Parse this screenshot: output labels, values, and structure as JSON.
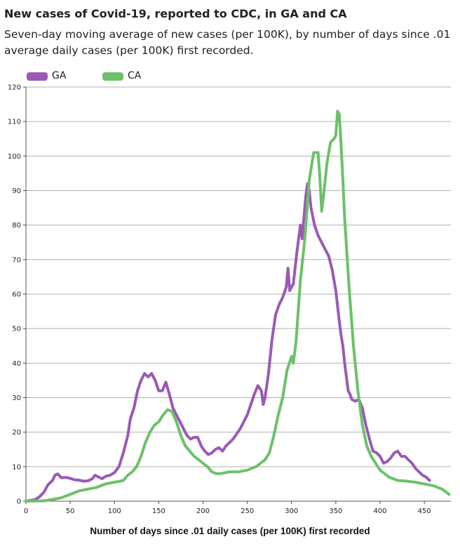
{
  "chart_data": {
    "type": "line",
    "title": "New cases of Covid-19, reported to CDC, in GA and CA",
    "subtitle": "Seven-day moving average of new cases (per 100K), by number of days since .01 average daily cases (per 100K) first recorded.",
    "xlabel": "Number of days since .01 daily cases (per 100K) first recorded",
    "ylabel": "",
    "xlim": [
      0,
      480
    ],
    "ylim": [
      0,
      120
    ],
    "xticks": [
      0,
      50,
      100,
      150,
      200,
      250,
      300,
      350,
      400,
      450
    ],
    "yticks": [
      0,
      10,
      20,
      30,
      40,
      50,
      60,
      70,
      80,
      90,
      100,
      110,
      120
    ],
    "grid": "horizontal",
    "legend_position": "top-left",
    "series": [
      {
        "name": "GA",
        "color": "#9b59b6",
        "points": [
          [
            0,
            0
          ],
          [
            10,
            0.4
          ],
          [
            15,
            1.2
          ],
          [
            20,
            2.5
          ],
          [
            25,
            4.8
          ],
          [
            30,
            6
          ],
          [
            33,
            7.6
          ],
          [
            36,
            7.9
          ],
          [
            40,
            6.8
          ],
          [
            45,
            6.9
          ],
          [
            50,
            6.6
          ],
          [
            55,
            6.2
          ],
          [
            60,
            6.1
          ],
          [
            65,
            5.8
          ],
          [
            70,
            5.9
          ],
          [
            75,
            6.5
          ],
          [
            78,
            7.5
          ],
          [
            82,
            7
          ],
          [
            86,
            6.5
          ],
          [
            90,
            7.2
          ],
          [
            95,
            7.5
          ],
          [
            100,
            8.3
          ],
          [
            105,
            10
          ],
          [
            110,
            14
          ],
          [
            115,
            19
          ],
          [
            118,
            24
          ],
          [
            122,
            27
          ],
          [
            126,
            32
          ],
          [
            130,
            35
          ],
          [
            134,
            37
          ],
          [
            138,
            36
          ],
          [
            142,
            37
          ],
          [
            146,
            35
          ],
          [
            150,
            32
          ],
          [
            154,
            32
          ],
          [
            158,
            34.5
          ],
          [
            162,
            31
          ],
          [
            166,
            27
          ],
          [
            170,
            25
          ],
          [
            174,
            23
          ],
          [
            178,
            21
          ],
          [
            182,
            19
          ],
          [
            186,
            18
          ],
          [
            190,
            18.5
          ],
          [
            194,
            18.5
          ],
          [
            198,
            16
          ],
          [
            202,
            14.5
          ],
          [
            206,
            13.5
          ],
          [
            210,
            14
          ],
          [
            214,
            15
          ],
          [
            218,
            15.5
          ],
          [
            222,
            14.5
          ],
          [
            226,
            16
          ],
          [
            230,
            17
          ],
          [
            234,
            18
          ],
          [
            238,
            19.5
          ],
          [
            242,
            21
          ],
          [
            246,
            23
          ],
          [
            250,
            25
          ],
          [
            254,
            28
          ],
          [
            258,
            31
          ],
          [
            262,
            33.5
          ],
          [
            266,
            32
          ],
          [
            268,
            28
          ],
          [
            270,
            30
          ],
          [
            274,
            37
          ],
          [
            278,
            47
          ],
          [
            282,
            54
          ],
          [
            286,
            57
          ],
          [
            290,
            59
          ],
          [
            294,
            62
          ],
          [
            296,
            67.5
          ],
          [
            298,
            61
          ],
          [
            302,
            63
          ],
          [
            306,
            72
          ],
          [
            310,
            80
          ],
          [
            312,
            76
          ],
          [
            314,
            82
          ],
          [
            316,
            88
          ],
          [
            318,
            92
          ],
          [
            320,
            90
          ],
          [
            322,
            85
          ],
          [
            326,
            80
          ],
          [
            330,
            77
          ],
          [
            334,
            75
          ],
          [
            338,
            73
          ],
          [
            342,
            71
          ],
          [
            346,
            67
          ],
          [
            350,
            61
          ],
          [
            354,
            52
          ],
          [
            356,
            48
          ],
          [
            358,
            45
          ],
          [
            360,
            40
          ],
          [
            362,
            36
          ],
          [
            364,
            32
          ],
          [
            366,
            31
          ],
          [
            368,
            29.5
          ],
          [
            372,
            29
          ],
          [
            376,
            29.5
          ],
          [
            380,
            27
          ],
          [
            384,
            22
          ],
          [
            388,
            18
          ],
          [
            392,
            14.5
          ],
          [
            396,
            14
          ],
          [
            400,
            13
          ],
          [
            404,
            11
          ],
          [
            408,
            11.5
          ],
          [
            412,
            12.5
          ],
          [
            416,
            14
          ],
          [
            420,
            14.5
          ],
          [
            424,
            13
          ],
          [
            428,
            13
          ],
          [
            432,
            12
          ],
          [
            436,
            11
          ],
          [
            440,
            9.5
          ],
          [
            444,
            8.5
          ],
          [
            448,
            7.5
          ],
          [
            452,
            7
          ],
          [
            456,
            6
          ]
        ]
      },
      {
        "name": "CA",
        "color": "#6cc16a",
        "points": [
          [
            0,
            0
          ],
          [
            20,
            0.1
          ],
          [
            30,
            0.5
          ],
          [
            40,
            1
          ],
          [
            50,
            2
          ],
          [
            60,
            3
          ],
          [
            70,
            3.5
          ],
          [
            80,
            4
          ],
          [
            90,
            5
          ],
          [
            100,
            5.5
          ],
          [
            110,
            6
          ],
          [
            115,
            7.5
          ],
          [
            120,
            8.5
          ],
          [
            125,
            10
          ],
          [
            130,
            13
          ],
          [
            135,
            17
          ],
          [
            140,
            20
          ],
          [
            145,
            22
          ],
          [
            150,
            23
          ],
          [
            155,
            25
          ],
          [
            160,
            26.5
          ],
          [
            165,
            26
          ],
          [
            170,
            23
          ],
          [
            175,
            19
          ],
          [
            180,
            16
          ],
          [
            185,
            14.5
          ],
          [
            190,
            13
          ],
          [
            195,
            12
          ],
          [
            200,
            11
          ],
          [
            205,
            10
          ],
          [
            210,
            8.5
          ],
          [
            215,
            8
          ],
          [
            220,
            8
          ],
          [
            230,
            8.5
          ],
          [
            240,
            8.5
          ],
          [
            250,
            9
          ],
          [
            255,
            9.5
          ],
          [
            260,
            10
          ],
          [
            265,
            11
          ],
          [
            270,
            12
          ],
          [
            275,
            14
          ],
          [
            280,
            19
          ],
          [
            285,
            25
          ],
          [
            290,
            30
          ],
          [
            295,
            38
          ],
          [
            300,
            42
          ],
          [
            302,
            40
          ],
          [
            305,
            46
          ],
          [
            310,
            64
          ],
          [
            315,
            76
          ],
          [
            318,
            86
          ],
          [
            320,
            93
          ],
          [
            325,
            101
          ],
          [
            330,
            101
          ],
          [
            332,
            94
          ],
          [
            334,
            84
          ],
          [
            336,
            88
          ],
          [
            340,
            98
          ],
          [
            344,
            104
          ],
          [
            348,
            105
          ],
          [
            350,
            106
          ],
          [
            352,
            113
          ],
          [
            354,
            112
          ],
          [
            356,
            103
          ],
          [
            358,
            93
          ],
          [
            360,
            82
          ],
          [
            365,
            62
          ],
          [
            370,
            45
          ],
          [
            375,
            32
          ],
          [
            380,
            22
          ],
          [
            385,
            16
          ],
          [
            390,
            13
          ],
          [
            395,
            11
          ],
          [
            400,
            9
          ],
          [
            410,
            7
          ],
          [
            420,
            6
          ],
          [
            430,
            5.8
          ],
          [
            440,
            5.5
          ],
          [
            450,
            5
          ],
          [
            460,
            4.5
          ],
          [
            470,
            3.5
          ],
          [
            478,
            2
          ]
        ]
      }
    ]
  }
}
